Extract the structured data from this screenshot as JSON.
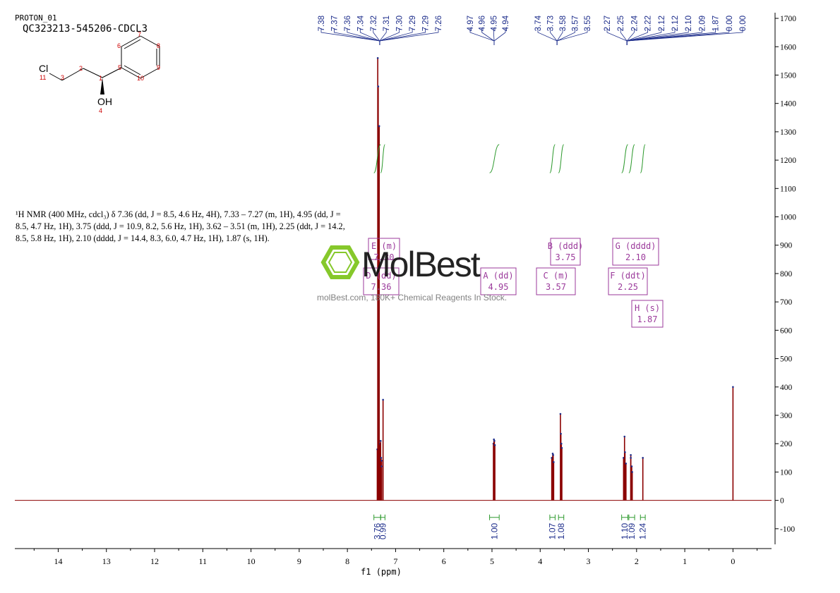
{
  "header": {
    "experiment": "PROTON_01",
    "sample": "QC323213-545206-CDCL3"
  },
  "description": "¹H NMR (400 MHz, cdcl₃) δ 7.36 (dd, J = 8.5, 4.6 Hz, 4H), 7.33 – 7.27 (m, 1H), 4.95 (dd, J = 8.5, 4.7 Hz, 1H), 3.75 (ddd, J = 10.9, 8.2, 5.6 Hz, 1H), 3.62 – 3.51 (m, 1H), 2.25 (ddt, J = 14.2, 8.5, 5.8 Hz, 1H), 2.10 (dddd, J = 14.4, 8.3, 6.0, 4.7 Hz, 1H), 1.87 (s, 1H).",
  "watermark": {
    "brand": "MolBest",
    "tagline": "molBest.com, 180K+ Chemical Reagents In Stock."
  },
  "molecule": {
    "atoms": [
      "Cl",
      "OH",
      "11",
      "3",
      "2",
      "1",
      "4",
      "5",
      "6",
      "7",
      "8",
      "9",
      "10"
    ]
  },
  "colors": {
    "spectrum": "#8b0000",
    "peak_labels": "#1f2f8c",
    "integral": "#2e9a2e",
    "multiplet_box": "#9b3a9b",
    "logo": "#7cc41a"
  },
  "chart_data": {
    "type": "line",
    "title": "",
    "xlabel": "f1 (ppm)",
    "ylabel": "",
    "xlim": [
      14.9,
      -0.8
    ],
    "ylim": [
      -170,
      1720
    ],
    "x_ticks": [
      14,
      13,
      12,
      11,
      10,
      9,
      8,
      7,
      6,
      5,
      4,
      3,
      2,
      1,
      0
    ],
    "y_ticks": [
      1700,
      1600,
      1500,
      1400,
      1300,
      1200,
      1100,
      1000,
      900,
      800,
      700,
      600,
      500,
      400,
      300,
      200,
      100,
      0,
      -100
    ],
    "peaks": [
      {
        "ppm": 7.38,
        "height": 180
      },
      {
        "ppm": 7.37,
        "height": 1560
      },
      {
        "ppm": 7.36,
        "height": 1460
      },
      {
        "ppm": 7.34,
        "height": 1320
      },
      {
        "ppm": 7.32,
        "height": 200
      },
      {
        "ppm": 7.31,
        "height": 210
      },
      {
        "ppm": 7.3,
        "height": 150
      },
      {
        "ppm": 7.29,
        "height": 140
      },
      {
        "ppm": 7.29,
        "height": 120
      },
      {
        "ppm": 7.26,
        "height": 355
      },
      {
        "ppm": 4.97,
        "height": 200
      },
      {
        "ppm": 4.96,
        "height": 215
      },
      {
        "ppm": 4.95,
        "height": 210
      },
      {
        "ppm": 4.94,
        "height": 195
      },
      {
        "ppm": 3.76,
        "height": 150
      },
      {
        "ppm": 3.74,
        "height": 165
      },
      {
        "ppm": 3.73,
        "height": 160
      },
      {
        "ppm": 3.72,
        "height": 135
      },
      {
        "ppm": 3.58,
        "height": 305
      },
      {
        "ppm": 3.57,
        "height": 235
      },
      {
        "ppm": 3.56,
        "height": 200
      },
      {
        "ppm": 3.55,
        "height": 185
      },
      {
        "ppm": 2.27,
        "height": 150
      },
      {
        "ppm": 2.25,
        "height": 225
      },
      {
        "ppm": 2.24,
        "height": 170
      },
      {
        "ppm": 2.22,
        "height": 130
      },
      {
        "ppm": 2.12,
        "height": 160
      },
      {
        "ppm": 2.12,
        "height": 150
      },
      {
        "ppm": 2.1,
        "height": 120
      },
      {
        "ppm": 2.09,
        "height": 100
      },
      {
        "ppm": 1.87,
        "height": 150
      },
      {
        "ppm": 0.0,
        "height": 400
      }
    ],
    "peak_labels": [
      {
        "group": 1,
        "labels": [
          "7.38",
          "7.37",
          "7.36",
          "7.34",
          "7.32",
          "7.31",
          "7.30",
          "7.29",
          "7.29",
          "7.26"
        ]
      },
      {
        "group": 2,
        "labels": [
          "4.97",
          "4.96",
          "4.95",
          "4.94"
        ]
      },
      {
        "group": 3,
        "labels": [
          "3.74",
          "3.73",
          "3.58",
          "3.57",
          "3.55"
        ]
      },
      {
        "group": 4,
        "labels": [
          "2.27",
          "2.25",
          "2.24",
          "2.22",
          "2.12",
          "2.12",
          "2.10",
          "2.09",
          "1.87",
          "0.00",
          "0.00"
        ]
      }
    ],
    "integrals": [
      {
        "from": 7.45,
        "to": 7.31,
        "value": "3.76"
      },
      {
        "from": 7.31,
        "to": 7.22,
        "value": "0.99"
      },
      {
        "from": 5.05,
        "to": 4.85,
        "value": "1.00"
      },
      {
        "from": 3.8,
        "to": 3.69,
        "value": "1.07"
      },
      {
        "from": 3.62,
        "to": 3.51,
        "value": "1.08"
      },
      {
        "from": 2.31,
        "to": 2.18,
        "value": "1.10"
      },
      {
        "from": 2.16,
        "to": 2.04,
        "value": "1.09"
      },
      {
        "from": 1.92,
        "to": 1.82,
        "value": "1.24"
      }
    ],
    "multiplets": [
      {
        "letter": "E",
        "type": "(m)",
        "shift": "7.30"
      },
      {
        "letter": "D",
        "type": "(dd)",
        "shift": "7.36"
      },
      {
        "letter": "A",
        "type": "(dd)",
        "shift": "4.95"
      },
      {
        "letter": "C",
        "type": "(m)",
        "shift": "3.57"
      },
      {
        "letter": "B",
        "type": "(ddd)",
        "shift": "3.75"
      },
      {
        "letter": "G",
        "type": "(dddd)",
        "shift": "2.10"
      },
      {
        "letter": "F",
        "type": "(ddt)",
        "shift": "2.25"
      },
      {
        "letter": "H",
        "type": "(s)",
        "shift": "1.87"
      }
    ]
  }
}
